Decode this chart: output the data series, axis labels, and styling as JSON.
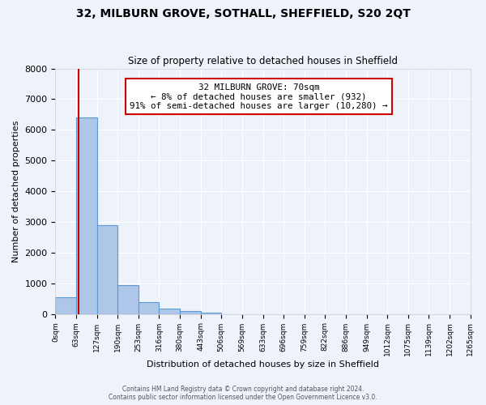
{
  "title": "32, MILBURN GROVE, SOTHALL, SHEFFIELD, S20 2QT",
  "subtitle": "Size of property relative to detached houses in Sheffield",
  "xlabel": "Distribution of detached houses by size in Sheffield",
  "ylabel": "Number of detached properties",
  "bin_edges": [
    0,
    63,
    127,
    190,
    253,
    316,
    380,
    443,
    506,
    569,
    633,
    696,
    759,
    822,
    886,
    949,
    1012,
    1075,
    1139,
    1202,
    1265
  ],
  "bar_heights": [
    550,
    6400,
    2900,
    950,
    380,
    170,
    85,
    50,
    0,
    0,
    0,
    0,
    0,
    0,
    0,
    0,
    0,
    0,
    0,
    0
  ],
  "bar_color": "#aec6e8",
  "bar_edgecolor": "#5b9bd5",
  "property_size": 70,
  "vline_color": "#cc0000",
  "annotation_text": "32 MILBURN GROVE: 70sqm\n← 8% of detached houses are smaller (932)\n91% of semi-detached houses are larger (10,280) →",
  "annotation_box_edgecolor": "#cc0000",
  "annotation_box_facecolor": "#ffffff",
  "ylim": [
    0,
    8000
  ],
  "yticks": [
    0,
    1000,
    2000,
    3000,
    4000,
    5000,
    6000,
    7000,
    8000
  ],
  "background_color": "#eef2fb",
  "grid_color": "#ffffff",
  "footer_line1": "Contains HM Land Registry data © Crown copyright and database right 2024.",
  "footer_line2": "Contains public sector information licensed under the Open Government Licence v3.0."
}
